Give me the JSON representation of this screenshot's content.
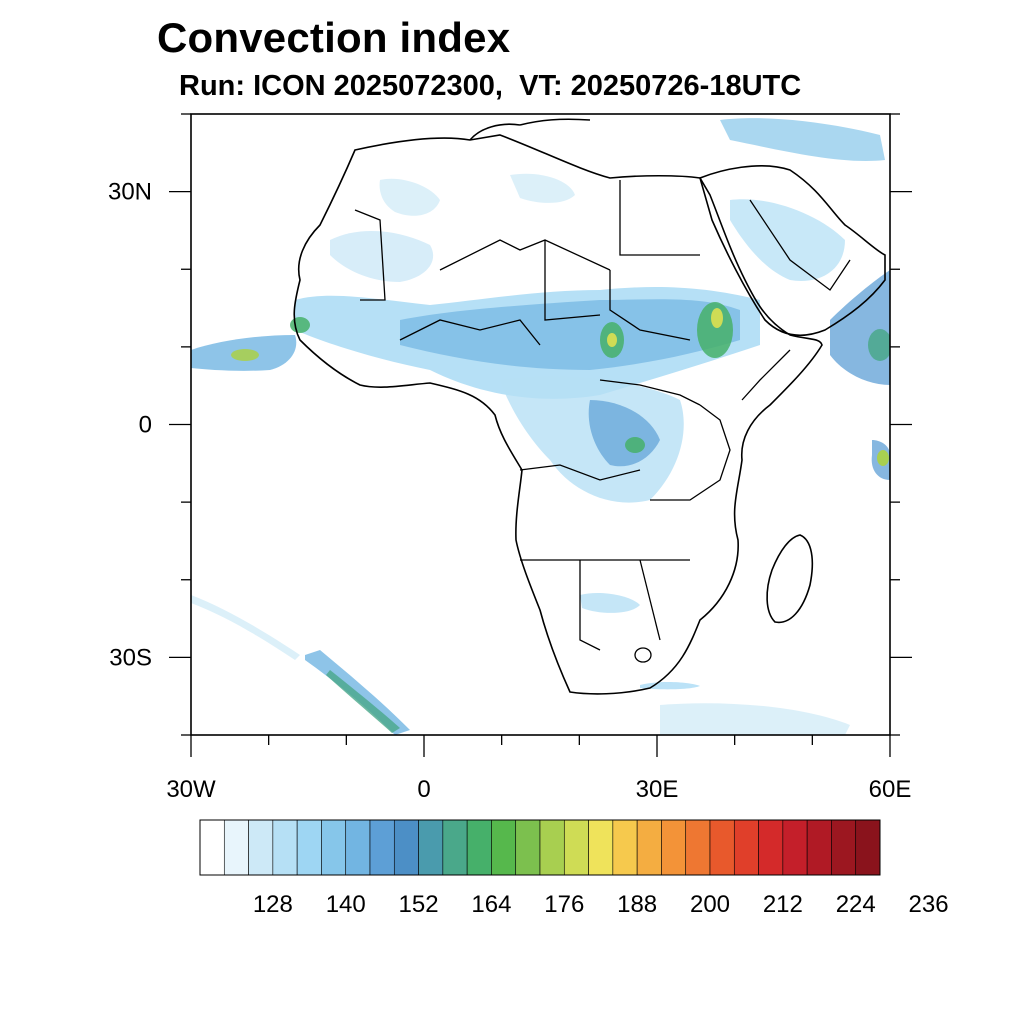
{
  "title": "Convection index",
  "subtitle": "Run: ICON 2025072300,  VT: 20250726-18UTC",
  "map": {
    "region": "Africa",
    "lon_range": [
      -30,
      60
    ],
    "lat_range": [
      -40,
      40
    ],
    "lat_ticks": [
      {
        "value": 30,
        "label": "30N"
      },
      {
        "value": 0,
        "label": "0"
      },
      {
        "value": -30,
        "label": "30S"
      }
    ],
    "lon_ticks": [
      {
        "value": -30,
        "label": "30W"
      },
      {
        "value": 0,
        "label": "0"
      },
      {
        "value": 30,
        "label": "30E"
      },
      {
        "value": 60,
        "label": "60E"
      }
    ]
  },
  "colorbar": {
    "label_values": [
      "128",
      "140",
      "152",
      "164",
      "176",
      "188",
      "200",
      "212",
      "224",
      "236"
    ],
    "colors": [
      "#ffffff",
      "#e8f5fc",
      "#cde9f7",
      "#b6e0f5",
      "#9ed6f3",
      "#86c6ea",
      "#72b5e2",
      "#5d9fd6",
      "#4c8fc6",
      "#4a9bad",
      "#4aa88a",
      "#46b06a",
      "#56b84c",
      "#7cc04e",
      "#a8cf50",
      "#cfdc55",
      "#efe35b",
      "#f6c94d",
      "#f4ad41",
      "#f39338",
      "#ee7732",
      "#e8592c",
      "#e03f2a",
      "#d42a2a",
      "#c41f2a",
      "#b01a25",
      "#9c1720",
      "#8a131c"
    ]
  }
}
